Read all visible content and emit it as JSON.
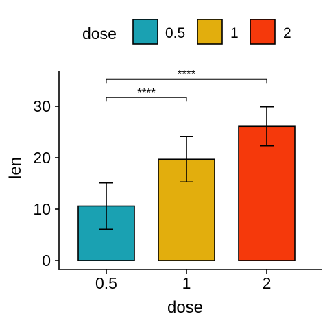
{
  "chart_data": {
    "type": "bar",
    "xlabel": "dose",
    "ylabel": "len",
    "categories": [
      "0.5",
      "1",
      "2"
    ],
    "values": [
      10.6,
      19.7,
      26.1
    ],
    "error_low": [
      6.1,
      15.3,
      22.3
    ],
    "error_high": [
      15.1,
      24.1,
      29.9
    ],
    "colors": [
      "#1AA1B2",
      "#E2AE0D",
      "#F5390B"
    ],
    "ylim": [
      -1.5,
      36
    ],
    "yticks": [
      0,
      10,
      20,
      30
    ],
    "grid": false,
    "legend": {
      "title": "dose",
      "position": "top",
      "entries": [
        "0.5",
        "1",
        "2"
      ]
    },
    "comparisons": [
      {
        "from": "0.5",
        "to": "1",
        "y": 31.7,
        "label": "****"
      },
      {
        "from": "0.5",
        "to": "2",
        "y": 35.3,
        "label": "****"
      }
    ]
  }
}
